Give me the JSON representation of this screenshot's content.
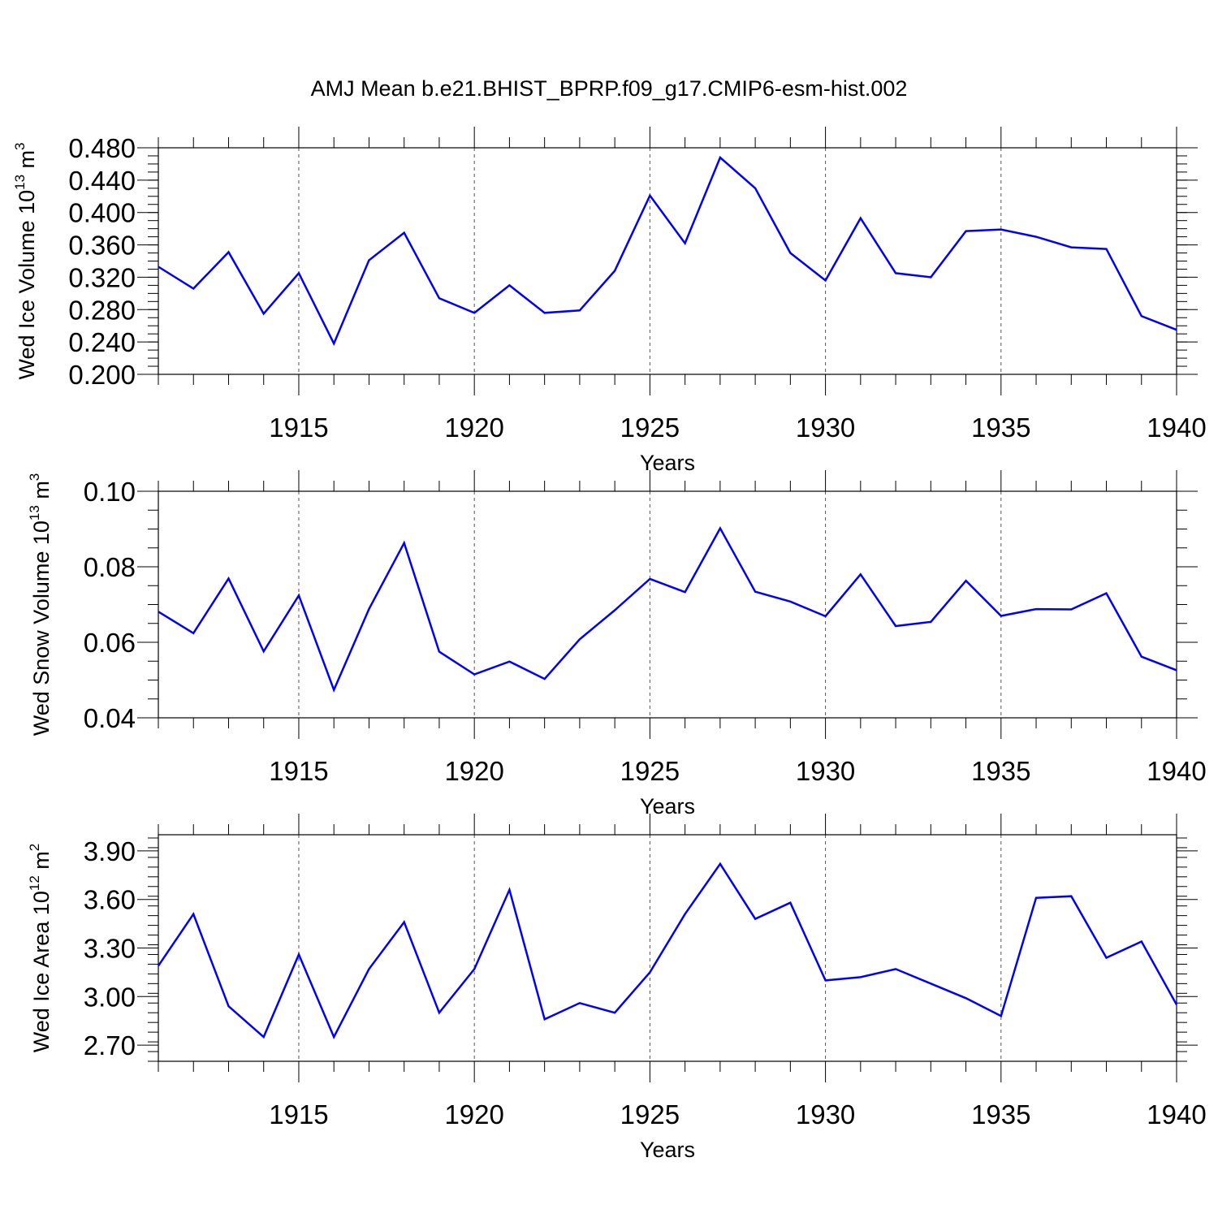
{
  "title": "AMJ Mean b.e21.BHIST_BPRP.f09_g17.CMIP6-esm-hist.002",
  "line_color": "#0000ff",
  "chart_data": [
    {
      "type": "line",
      "title": "AMJ Mean b.e21.BHIST_BPRP.f09_g17.CMIP6-esm-hist.002",
      "xlabel": "Years",
      "ylabel_main": "Wed Ice Volume 10",
      "ylabel_exp": "13",
      "ylabel_unit": " m",
      "ylabel_unit_exp": "3",
      "xlim": [
        1911,
        1940
      ],
      "ylim": [
        0.2,
        0.48
      ],
      "y_ticks": [
        0.2,
        0.24,
        0.28,
        0.32,
        0.36,
        0.4,
        0.44,
        0.48
      ],
      "y_tick_labels": [
        "0.200",
        "0.240",
        "0.280",
        "0.320",
        "0.360",
        "0.400",
        "0.440",
        "0.480"
      ],
      "y_minor_step": 0.01,
      "x_ticks": [
        1915,
        1920,
        1925,
        1930,
        1935,
        1940
      ],
      "x_tick_labels": [
        "1915",
        "1920",
        "1925",
        "1930",
        "1935",
        "1940"
      ],
      "grid": "vertical-dashed",
      "series": [
        {
          "name": "Wed Ice Volume",
          "x": [
            1911,
            1912,
            1913,
            1914,
            1915,
            1916,
            1917,
            1918,
            1919,
            1920,
            1921,
            1922,
            1923,
            1924,
            1925,
            1926,
            1927,
            1928,
            1929,
            1930,
            1931,
            1932,
            1933,
            1934,
            1935,
            1936,
            1937,
            1938,
            1939,
            1940
          ],
          "values": [
            0.333,
            0.306,
            0.351,
            0.275,
            0.325,
            0.238,
            0.341,
            0.375,
            0.294,
            0.276,
            0.31,
            0.276,
            0.279,
            0.328,
            0.421,
            0.362,
            0.468,
            0.43,
            0.35,
            0.316,
            0.393,
            0.325,
            0.32,
            0.377,
            0.379,
            0.37,
            0.357,
            0.355,
            0.272,
            0.255
          ]
        }
      ]
    },
    {
      "type": "line",
      "xlabel": "Years",
      "ylabel_main": "Wed Snow Volume 10",
      "ylabel_exp": "13",
      "ylabel_unit": " m",
      "ylabel_unit_exp": "3",
      "xlim": [
        1911,
        1940
      ],
      "ylim": [
        0.04,
        0.1
      ],
      "y_ticks": [
        0.04,
        0.06,
        0.08,
        0.1
      ],
      "y_tick_labels": [
        "0.04",
        "0.06",
        "0.08",
        "0.10"
      ],
      "y_minor_step": 0.005,
      "x_ticks": [
        1915,
        1920,
        1925,
        1930,
        1935,
        1940
      ],
      "x_tick_labels": [
        "1915",
        "1920",
        "1925",
        "1930",
        "1935",
        "1940"
      ],
      "grid": "vertical-dashed",
      "series": [
        {
          "name": "Wed Snow Volume",
          "x": [
            1911,
            1912,
            1913,
            1914,
            1915,
            1916,
            1917,
            1918,
            1919,
            1920,
            1921,
            1922,
            1923,
            1924,
            1925,
            1926,
            1927,
            1928,
            1929,
            1930,
            1931,
            1932,
            1933,
            1934,
            1935,
            1936,
            1937,
            1938,
            1939,
            1940
          ],
          "values": [
            0.0681,
            0.0624,
            0.0769,
            0.0576,
            0.0724,
            0.0474,
            0.0688,
            0.0863,
            0.0575,
            0.0515,
            0.0549,
            0.0503,
            0.0608,
            0.0685,
            0.0768,
            0.0733,
            0.0902,
            0.0734,
            0.0708,
            0.0669,
            0.078,
            0.0643,
            0.0654,
            0.0763,
            0.067,
            0.0688,
            0.0687,
            0.073,
            0.0562,
            0.0526
          ]
        }
      ]
    },
    {
      "type": "line",
      "xlabel": "Years",
      "ylabel_main": "Wed Ice Area 10",
      "ylabel_exp": "12",
      "ylabel_unit": " m",
      "ylabel_unit_exp": "2",
      "xlim": [
        1911,
        1940
      ],
      "ylim": [
        2.6,
        4.0
      ],
      "y_ticks": [
        2.7,
        3.0,
        3.3,
        3.6,
        3.9
      ],
      "y_tick_labels": [
        "2.70",
        "3.00",
        "3.30",
        "3.60",
        "3.90"
      ],
      "y_minor_step": 0.06,
      "x_ticks": [
        1915,
        1920,
        1925,
        1930,
        1935,
        1940
      ],
      "x_tick_labels": [
        "1915",
        "1920",
        "1925",
        "1930",
        "1935",
        "1940"
      ],
      "grid": "vertical-dashed",
      "series": [
        {
          "name": "Wed Ice Area",
          "x": [
            1911,
            1912,
            1913,
            1914,
            1915,
            1916,
            1917,
            1918,
            1919,
            1920,
            1921,
            1922,
            1923,
            1924,
            1925,
            1926,
            1927,
            1928,
            1929,
            1930,
            1931,
            1932,
            1933,
            1934,
            1935,
            1936,
            1937,
            1938,
            1939,
            1940
          ],
          "values": [
            3.19,
            3.51,
            2.94,
            2.75,
            3.26,
            2.75,
            3.17,
            3.46,
            2.9,
            3.17,
            3.66,
            2.86,
            2.96,
            2.9,
            3.15,
            3.51,
            3.82,
            3.48,
            3.58,
            3.1,
            3.12,
            3.17,
            3.08,
            2.99,
            2.88,
            3.61,
            3.62,
            3.24,
            3.34,
            2.95
          ]
        }
      ]
    }
  ]
}
